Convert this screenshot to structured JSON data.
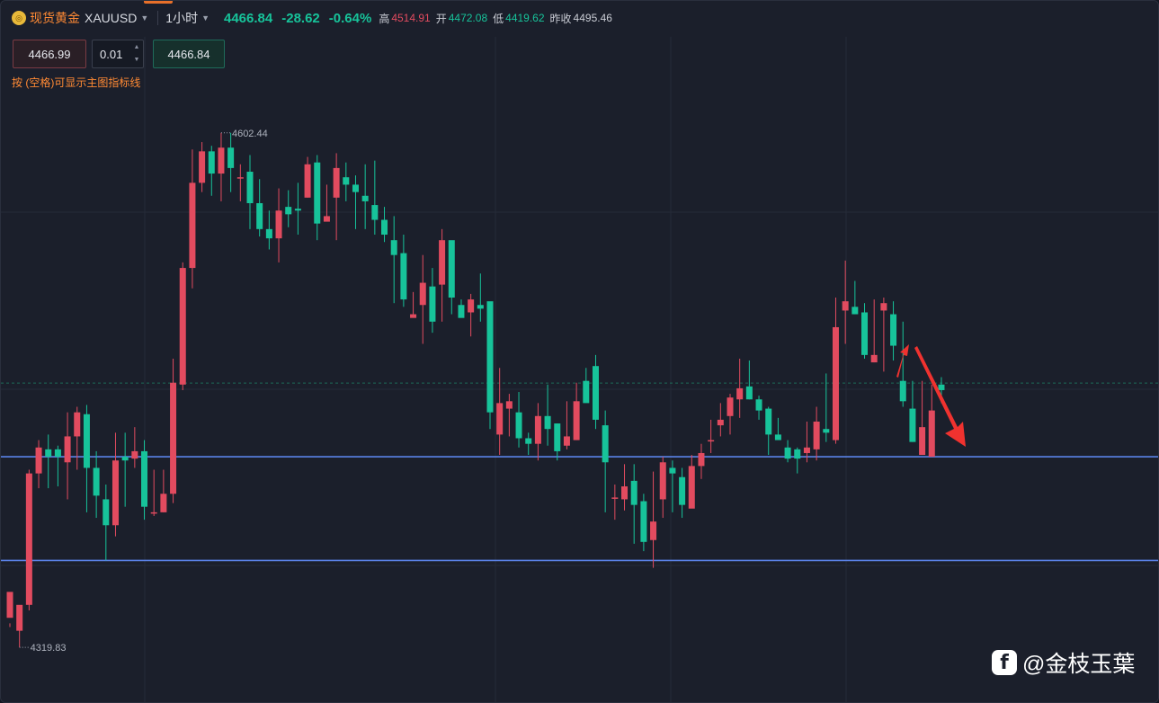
{
  "header": {
    "symbol_cn": "现货黄金",
    "symbol_code": "XAUUSD",
    "timeframe": "1小时",
    "last_price": "4466.84",
    "change": "-28.62",
    "change_pct": "-0.64%",
    "high_label": "高",
    "high_value": "4514.91",
    "open_label": "开",
    "open_value": "4472.08",
    "low_label": "低",
    "low_value": "4419.62",
    "prev_close_label": "昨收",
    "prev_close_value": "4495.46"
  },
  "trade": {
    "sell_price": "4466.99",
    "quantity": "0.01",
    "buy_price": "4466.84"
  },
  "hint": "按 (空格)可显示主图指标线",
  "watermark": "@金枝玉葉",
  "colors": {
    "up": "#e24b5f",
    "down": "#17c39a",
    "hline": "#5b82e8",
    "arrow": "#f0322f"
  },
  "chart_data": {
    "type": "candlestick",
    "y_range": [
      4310,
      4615
    ],
    "max_label": "4602.44",
    "min_label": "4319.83",
    "current_price": 4466.84,
    "horizontal_lines": [
      4427.0,
      4371.0
    ],
    "annotation": "red downward arrow after last candle",
    "candles": [
      [
        4340,
        4354,
        4337,
        4335
      ],
      [
        4333,
        4347,
        4346,
        4324
      ],
      [
        4347,
        4418,
        4420,
        4344
      ],
      [
        4418,
        4432,
        4436,
        4410
      ],
      [
        4431,
        4427,
        4439,
        4410
      ],
      [
        4431,
        4427,
        4433,
        4411
      ],
      [
        4424,
        4438,
        4451,
        4404
      ],
      [
        4438,
        4451,
        4454,
        4420
      ],
      [
        4450,
        4421,
        4455,
        4397
      ],
      [
        4421,
        4406,
        4430,
        4394
      ],
      [
        4404,
        4390,
        4412,
        4371
      ],
      [
        4390,
        4425,
        4440,
        4384
      ],
      [
        4427,
        4425,
        4440,
        4400
      ],
      [
        4426,
        4430,
        4443,
        4421
      ],
      [
        4430,
        4400,
        4436,
        4393
      ],
      [
        4397,
        4397,
        4420,
        4395
      ],
      [
        4397,
        4407,
        4420,
        4397
      ],
      [
        4407,
        4467,
        4480,
        4402
      ],
      [
        4466,
        4529,
        4532,
        4463
      ],
      [
        4529,
        4575,
        4593,
        4518
      ],
      [
        4575,
        4592,
        4597,
        4570
      ],
      [
        4592,
        4580,
        4595,
        4568
      ],
      [
        4580,
        4594,
        4602,
        4565
      ],
      [
        4594,
        4583,
        4602,
        4570
      ],
      [
        4578,
        4578,
        4585,
        4565
      ],
      [
        4581,
        4564,
        4590,
        4550
      ],
      [
        4564,
        4550,
        4577,
        4546
      ],
      [
        4550,
        4545,
        4560,
        4539
      ],
      [
        4545,
        4560,
        4572,
        4532
      ],
      [
        4562,
        4558,
        4571,
        4551
      ],
      [
        4561,
        4560,
        4575,
        4547
      ],
      [
        4567,
        4585,
        4589,
        4567
      ],
      [
        4586,
        4553,
        4590,
        4544
      ],
      [
        4554,
        4557,
        4574,
        4555
      ],
      [
        4567,
        4583,
        4591,
        4544
      ],
      [
        4578,
        4574,
        4586,
        4565
      ],
      [
        4574,
        4570,
        4579,
        4550
      ],
      [
        4568,
        4565,
        4585,
        4550
      ],
      [
        4563,
        4555,
        4587,
        4547
      ],
      [
        4555,
        4547,
        4562,
        4543
      ],
      [
        4544,
        4536,
        4557,
        4510
      ],
      [
        4537,
        4512,
        4547,
        4508
      ],
      [
        4502,
        4504,
        4516,
        4504
      ],
      [
        4509,
        4521,
        4536,
        4488
      ],
      [
        4519,
        4500,
        4529,
        4494
      ],
      [
        4520,
        4544,
        4550,
        4500
      ],
      [
        4544,
        4513,
        4543,
        4504
      ],
      [
        4509,
        4502,
        4512,
        4506
      ],
      [
        4505,
        4512,
        4515,
        4492
      ],
      [
        4509,
        4507,
        4526,
        4500
      ],
      [
        4511,
        4451,
        4502,
        4442
      ],
      [
        4439,
        4456,
        4475,
        4428
      ],
      [
        4453,
        4457,
        4461,
        4438
      ],
      [
        4451,
        4437,
        4462,
        4432
      ],
      [
        4437,
        4434,
        4440,
        4428
      ],
      [
        4434,
        4449,
        4456,
        4425
      ],
      [
        4449,
        4442,
        4466,
        4433
      ],
      [
        4445,
        4430,
        4445,
        4425
      ],
      [
        4433,
        4438,
        4457,
        4431
      ],
      [
        4436,
        4457,
        4467,
        4436
      ],
      [
        4468,
        4456,
        4475,
        4457
      ],
      [
        4476,
        4447,
        4482,
        4442
      ],
      [
        4444,
        4424,
        4452,
        4397
      ],
      [
        4405,
        4405,
        4412,
        4393
      ],
      [
        4404,
        4411,
        4423,
        4398
      ],
      [
        4414,
        4401,
        4423,
        4380
      ],
      [
        4403,
        4381,
        4407,
        4376
      ],
      [
        4382,
        4392,
        4419,
        4367
      ],
      [
        4404,
        4424,
        4427,
        4394
      ],
      [
        4421,
        4418,
        4425,
        4397
      ],
      [
        4416,
        4401,
        4421,
        4394
      ],
      [
        4399,
        4422,
        4428,
        4402
      ],
      [
        4422,
        4429,
        4434,
        4415
      ],
      [
        4436,
        4436,
        4447,
        4429
      ],
      [
        4444,
        4447,
        4456,
        4438
      ],
      [
        4449,
        4459,
        4461,
        4439
      ],
      [
        4458,
        4464,
        4480,
        4448
      ],
      [
        4465,
        4458,
        4479,
        4458
      ],
      [
        4458,
        4452,
        4460,
        4447
      ],
      [
        4453,
        4439,
        4454,
        4428
      ],
      [
        4439,
        4436,
        4448,
        4437
      ],
      [
        4432,
        4426,
        4436,
        4424
      ],
      [
        4431,
        4426,
        4432,
        4418
      ],
      [
        4429,
        4432,
        4446,
        4424
      ],
      [
        4431,
        4446,
        4454,
        4425
      ],
      [
        4442,
        4440,
        4472,
        4435
      ],
      [
        4436,
        4497,
        4513,
        4434
      ],
      [
        4506,
        4511,
        4533,
        4488
      ],
      [
        4508,
        4504,
        4522,
        4504
      ],
      [
        4505,
        4482,
        4510,
        4480
      ],
      [
        4478,
        4482,
        4512,
        4478
      ],
      [
        4506,
        4510,
        4513,
        4473
      ],
      [
        4504,
        4487,
        4511,
        4479
      ],
      [
        4468,
        4457,
        4500,
        4454
      ],
      [
        4453,
        4435,
        4468,
        4435
      ],
      [
        4428,
        4443,
        4468,
        4429
      ],
      [
        4427,
        4452,
        4466,
        4445
      ],
      [
        4466,
        4463,
        4470,
        4456
      ]
    ]
  }
}
